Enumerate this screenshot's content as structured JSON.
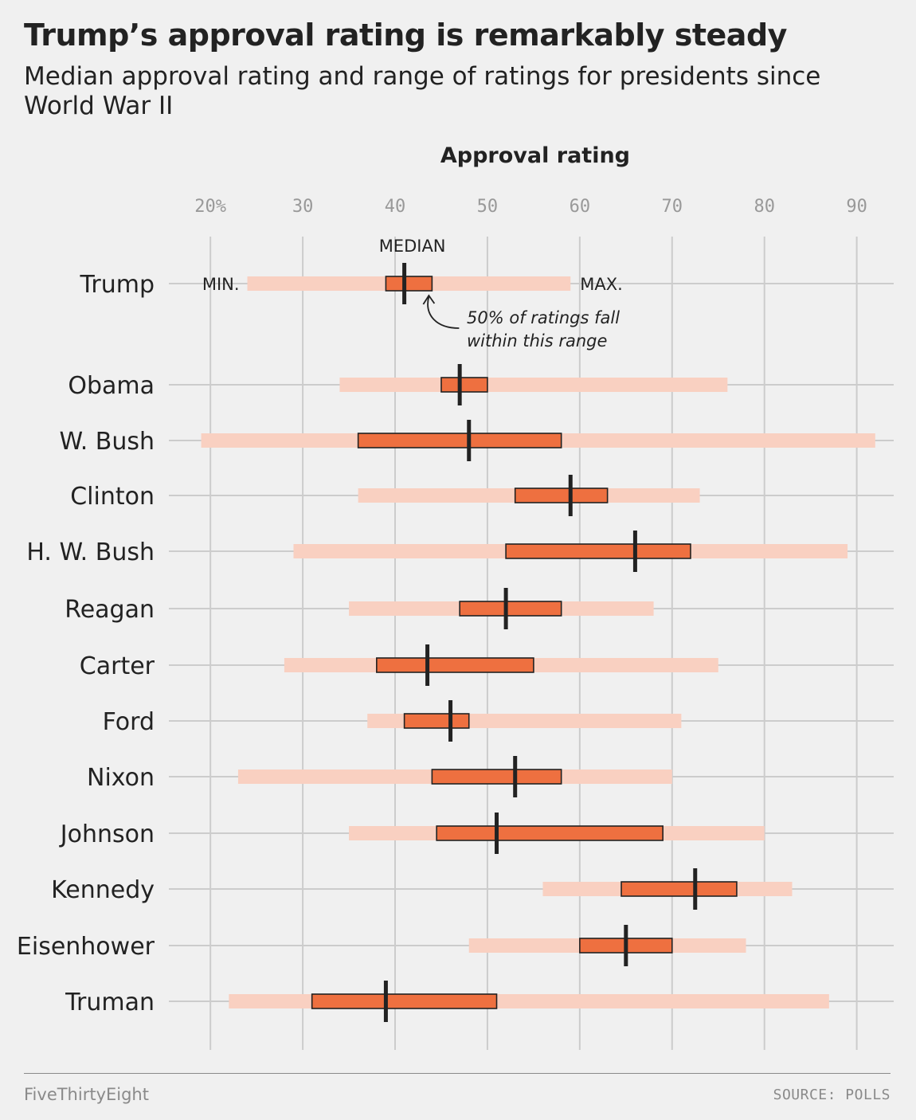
{
  "header": {
    "title": "Trump’s approval rating is remarkably steady",
    "subtitle": "Median approval rating and range of ratings for presidents since World War II"
  },
  "colors": {
    "range": "#f9d0c1",
    "iqr": "#ee7040",
    "median": "#222222",
    "grid": "#cccccc",
    "background": "#f0f0f0"
  },
  "chart_data": {
    "type": "range",
    "xlabel": "Approval rating",
    "xlim": [
      15.5,
      94
    ],
    "x_ticks": [
      20,
      30,
      40,
      50,
      60,
      70,
      80,
      90
    ],
    "x_tick_labels": [
      "20%",
      "30",
      "40",
      "50",
      "60",
      "70",
      "80",
      "90"
    ],
    "grid": true,
    "series": [
      {
        "president": "Trump",
        "min": 24,
        "q1": 39,
        "median": 41,
        "q3": 44,
        "max": 59
      },
      {
        "president": "Obama",
        "min": 34,
        "q1": 45,
        "median": 47,
        "q3": 50,
        "max": 76
      },
      {
        "president": "W. Bush",
        "min": 19,
        "q1": 36,
        "median": 48,
        "q3": 58,
        "max": 92
      },
      {
        "president": "Clinton",
        "min": 36,
        "q1": 53,
        "median": 59,
        "q3": 63,
        "max": 73
      },
      {
        "president": "H. W. Bush",
        "min": 29,
        "q1": 52,
        "median": 66,
        "q3": 72,
        "max": 89
      },
      {
        "president": "Reagan",
        "min": 35,
        "q1": 47,
        "median": 52,
        "q3": 58,
        "max": 68
      },
      {
        "president": "Carter",
        "min": 28,
        "q1": 38,
        "median": 43.5,
        "q3": 55,
        "max": 75
      },
      {
        "president": "Ford",
        "min": 37,
        "q1": 41,
        "median": 46,
        "q3": 48,
        "max": 71
      },
      {
        "president": "Nixon",
        "min": 23,
        "q1": 44,
        "median": 53,
        "q3": 58,
        "max": 70
      },
      {
        "president": "Johnson",
        "min": 35,
        "q1": 44.5,
        "median": 51,
        "q3": 69,
        "max": 80
      },
      {
        "president": "Kennedy",
        "min": 56,
        "q1": 64.5,
        "median": 72.5,
        "q3": 77,
        "max": 83
      },
      {
        "president": "Eisenhower",
        "min": 48,
        "q1": 60,
        "median": 65,
        "q3": 70,
        "max": 78
      },
      {
        "president": "Truman",
        "min": 22,
        "q1": 31,
        "median": 39,
        "q3": 51,
        "max": 87
      }
    ],
    "annotations": {
      "median": "MEDIAN",
      "min": "MIN.",
      "max": "MAX.",
      "iqr_line1": "50% of ratings fall",
      "iqr_line2": "within this range"
    }
  },
  "footer": {
    "brand": "FiveThirtyEight",
    "source": "SOURCE: POLLS"
  }
}
